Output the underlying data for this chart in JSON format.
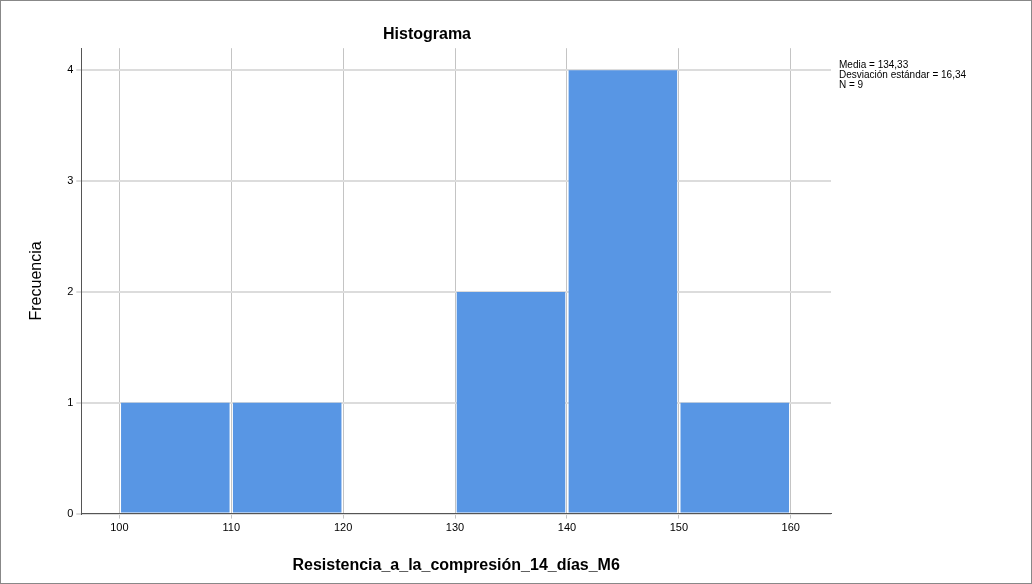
{
  "chart_data": {
    "type": "histogram",
    "title": "Histograma",
    "xlabel": "Resistencia_a_la_compresión_14_días_M6",
    "ylabel": "Frecuencia",
    "bins": [
      100,
      110,
      120,
      130,
      140,
      150,
      160
    ],
    "values": [
      1,
      1,
      0,
      2,
      4,
      1
    ],
    "color": "#5896e4",
    "xlim": [
      96.6,
      163.6
    ],
    "xticks": [
      100,
      110,
      120,
      130,
      140,
      150,
      160
    ],
    "ylim": [
      0,
      4.2
    ],
    "yticks": [
      0,
      1,
      2,
      3,
      4
    ],
    "grid": true,
    "legend": false,
    "annotations": [
      "Media = 134,33",
      "Desviación estándar = 16,34",
      "N = 9"
    ]
  }
}
